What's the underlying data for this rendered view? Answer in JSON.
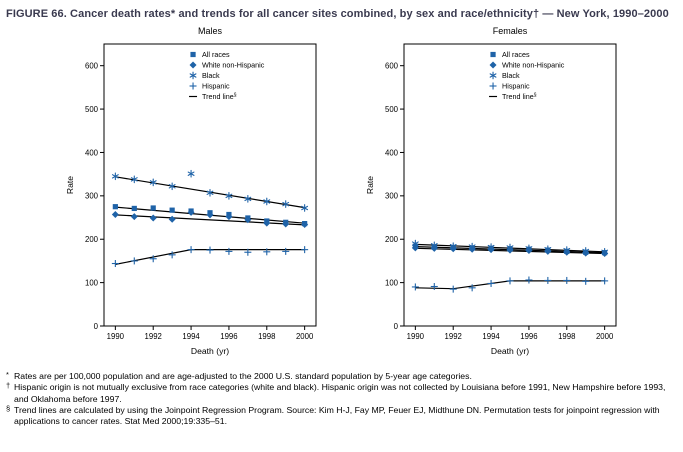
{
  "figure_title": "FIGURE 66. Cancer death rates* and trends for all cancer sites combined, by sex and race/ethnicity† — New York, 1990–2000",
  "colors": {
    "marker": "#1F63A8",
    "trend": "#000000",
    "frame": "#000000",
    "text": "#000000",
    "title_text": "#3A3A4F"
  },
  "chart_data": [
    {
      "type": "scatter",
      "title": "Males",
      "xlabel": "Death (yr)",
      "ylabel": "Rate",
      "xlim": [
        1989.4,
        2000.6
      ],
      "ylim": [
        0,
        650
      ],
      "xticks": [
        1990,
        1992,
        1994,
        1996,
        1998,
        2000
      ],
      "yticks": [
        0,
        100,
        200,
        300,
        400,
        500,
        600
      ],
      "grid": false,
      "legend_position": "top-center-right",
      "x": [
        1990,
        1991,
        1992,
        1993,
        1994,
        1995,
        1996,
        1997,
        1998,
        1999,
        2000
      ],
      "series": [
        {
          "name": "All races",
          "marker": "square",
          "values": [
            275,
            271,
            272,
            267,
            265,
            261,
            257,
            249,
            242,
            239,
            236
          ]
        },
        {
          "name": "White non-Hispanic",
          "marker": "diamond",
          "values": [
            257,
            252,
            249,
            246,
            262,
            256,
            252,
            245,
            237,
            235,
            234
          ]
        },
        {
          "name": "Black",
          "marker": "asterisk",
          "values": [
            345,
            338,
            331,
            322,
            351,
            307,
            300,
            293,
            287,
            281,
            272
          ]
        },
        {
          "name": "Hispanic",
          "marker": "plus",
          "values": [
            144,
            150,
            155,
            164,
            176,
            175,
            172,
            170,
            171,
            172,
            176
          ]
        }
      ],
      "trend_lines": [
        {
          "series": "Black",
          "points": [
            [
              1990,
              344
            ],
            [
              2000,
              273
            ]
          ]
        },
        {
          "series": "All races",
          "points": [
            [
              1990,
              274
            ],
            [
              2000,
              237
            ]
          ]
        },
        {
          "series": "White non-Hispanic",
          "points": [
            [
              1990,
              256
            ],
            [
              2000,
              233
            ]
          ]
        },
        {
          "series": "Hispanic",
          "points": [
            [
              1990,
              142
            ],
            [
              1994,
              176
            ],
            [
              2000,
              176
            ]
          ]
        }
      ],
      "legend_trend_label": "Trend line",
      "legend_trend_sup": "§"
    },
    {
      "type": "scatter",
      "title": "Females",
      "xlabel": "Death (yr)",
      "ylabel": "Rate",
      "xlim": [
        1989.4,
        2000.6
      ],
      "ylim": [
        0,
        650
      ],
      "xticks": [
        1990,
        1992,
        1994,
        1996,
        1998,
        2000
      ],
      "yticks": [
        0,
        100,
        200,
        300,
        400,
        500,
        600
      ],
      "grid": false,
      "legend_position": "top-center-right",
      "x": [
        1990,
        1991,
        1992,
        1993,
        1994,
        1995,
        1996,
        1997,
        1998,
        1999,
        2000
      ],
      "series": [
        {
          "name": "All races",
          "marker": "square",
          "values": [
            184,
            182,
            181,
            180,
            179,
            178,
            177,
            175,
            172,
            170,
            169
          ]
        },
        {
          "name": "White non-Hispanic",
          "marker": "diamond",
          "values": [
            180,
            179,
            178,
            177,
            176,
            175,
            174,
            172,
            170,
            168,
            167
          ]
        },
        {
          "name": "Black",
          "marker": "asterisk",
          "values": [
            190,
            186,
            184,
            183,
            182,
            181,
            179,
            177,
            175,
            173,
            171
          ]
        },
        {
          "name": "Hispanic",
          "marker": "plus",
          "values": [
            90,
            91,
            85,
            88,
            98,
            104,
            106,
            105,
            105,
            103,
            104
          ]
        }
      ],
      "trend_lines": [
        {
          "series": "All races",
          "points": [
            [
              1990,
              183
            ],
            [
              2000,
              169
            ]
          ]
        },
        {
          "series": "White non-Hispanic",
          "points": [
            [
              1990,
              179
            ],
            [
              2000,
              167
            ]
          ]
        },
        {
          "series": "Black",
          "points": [
            [
              1990,
              188
            ],
            [
              2000,
              171
            ]
          ]
        },
        {
          "series": "Hispanic",
          "points": [
            [
              1990,
              88
            ],
            [
              1992,
              86
            ],
            [
              1995,
              104
            ],
            [
              2000,
              104
            ]
          ]
        }
      ],
      "legend_trend_label": "Trend line",
      "legend_trend_sup": "§"
    }
  ],
  "footnotes": [
    {
      "marker": "*",
      "text": "Rates are per 100,000 population and are age-adjusted to the 2000 U.S. standard population by 5-year age categories."
    },
    {
      "marker": "†",
      "text": "Hispanic origin is not mutually exclusive from race categories (white and black). Hispanic origin was not collected by Louisiana before 1991, New Hampshire before 1993, and Oklahoma before 1997."
    },
    {
      "marker": "§",
      "text": "Trend lines are calculated by using the Joinpoint Regression Program. Source: Kim H-J, Fay MP, Feuer EJ, Midthune DN. Permutation tests for joinpoint regression with applications to cancer rates. Stat Med 2000;19:335–51."
    }
  ]
}
